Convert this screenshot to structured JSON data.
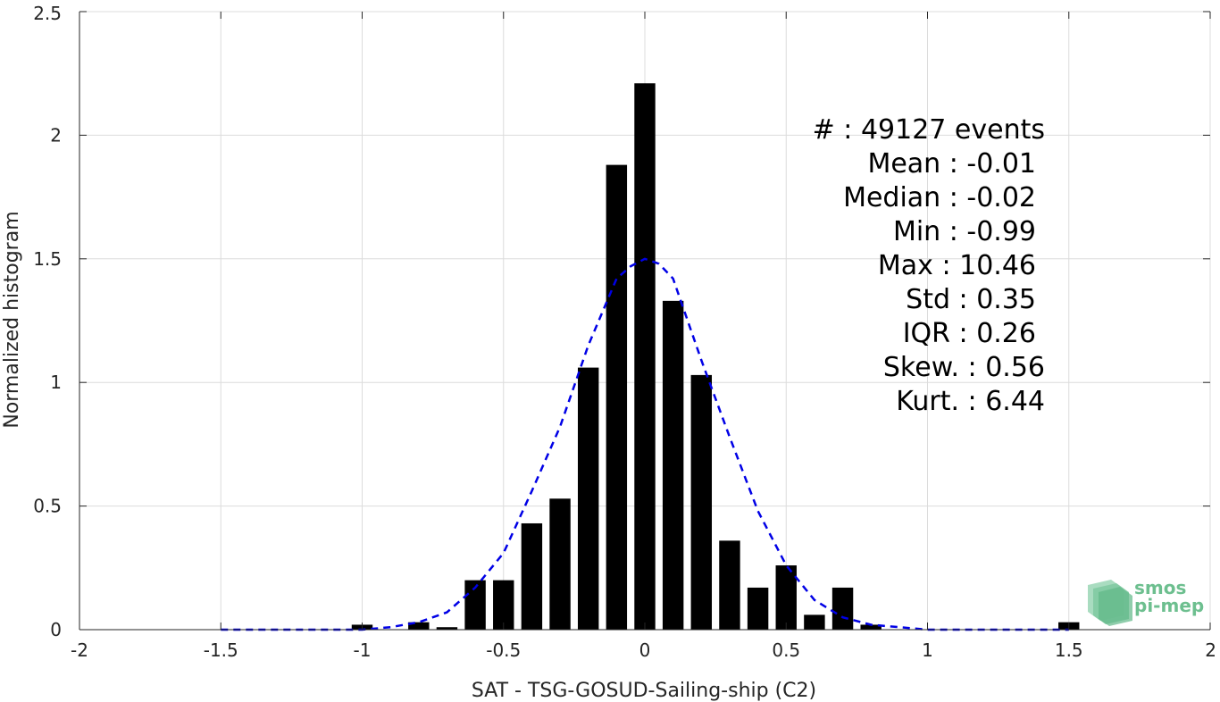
{
  "chart_data": {
    "type": "bar",
    "xlabel": "SAT - TSG-GOSUD-Sailing-ship (C2)",
    "ylabel": "Normalized histogram",
    "xlim": [
      -2,
      2
    ],
    "ylim": [
      0,
      2.5
    ],
    "grid": true,
    "xticks": [
      "-2",
      "-1.5",
      "-1",
      "-0.5",
      "0",
      "0.5",
      "1",
      "1.5",
      "2"
    ],
    "yticks": [
      "0",
      "0.5",
      "1",
      "1.5",
      "2",
      "2.5"
    ],
    "bar_color": "#000000",
    "bars": [
      {
        "x": -1.0,
        "y": 0.02
      },
      {
        "x": -0.8,
        "y": 0.03
      },
      {
        "x": -0.7,
        "y": 0.01
      },
      {
        "x": -0.6,
        "y": 0.2
      },
      {
        "x": -0.5,
        "y": 0.2
      },
      {
        "x": -0.4,
        "y": 0.43
      },
      {
        "x": -0.3,
        "y": 0.53
      },
      {
        "x": -0.2,
        "y": 1.06
      },
      {
        "x": -0.1,
        "y": 1.88
      },
      {
        "x": 0.0,
        "y": 2.21
      },
      {
        "x": 0.1,
        "y": 1.33
      },
      {
        "x": 0.2,
        "y": 1.03
      },
      {
        "x": 0.3,
        "y": 0.36
      },
      {
        "x": 0.4,
        "y": 0.17
      },
      {
        "x": 0.5,
        "y": 0.26
      },
      {
        "x": 0.6,
        "y": 0.06
      },
      {
        "x": 0.7,
        "y": 0.17
      },
      {
        "x": 0.8,
        "y": 0.02
      },
      {
        "x": 1.5,
        "y": 0.03
      }
    ],
    "fit_curve": {
      "style": "dashed",
      "color": "#0000e6",
      "x": [
        -1.5,
        -1.2,
        -1.0,
        -0.9,
        -0.8,
        -0.7,
        -0.6,
        -0.5,
        -0.4,
        -0.3,
        -0.2,
        -0.1,
        -0.05,
        0.0,
        0.05,
        0.1,
        0.2,
        0.3,
        0.4,
        0.5,
        0.6,
        0.7,
        0.8,
        0.9,
        1.0,
        1.2,
        1.5
      ],
      "y": [
        0.0,
        0.0,
        0.0,
        0.01,
        0.03,
        0.07,
        0.17,
        0.31,
        0.56,
        0.82,
        1.15,
        1.42,
        1.47,
        1.5,
        1.48,
        1.42,
        1.09,
        0.78,
        0.48,
        0.26,
        0.12,
        0.05,
        0.02,
        0.01,
        0.0,
        0.0,
        0.0
      ]
    },
    "stats": [
      "#  : 49127 events",
      "Mean : -0.01",
      "Median : -0.02",
      "Min : -0.99",
      "Max : 10.46",
      "Std : 0.35",
      "IQR : 0.26",
      "Skew. : 0.56",
      "Kurt. : 6.44"
    ]
  },
  "logo": {
    "line1": "smos",
    "line2": "pi-mep",
    "color": "#6dbf8f"
  }
}
